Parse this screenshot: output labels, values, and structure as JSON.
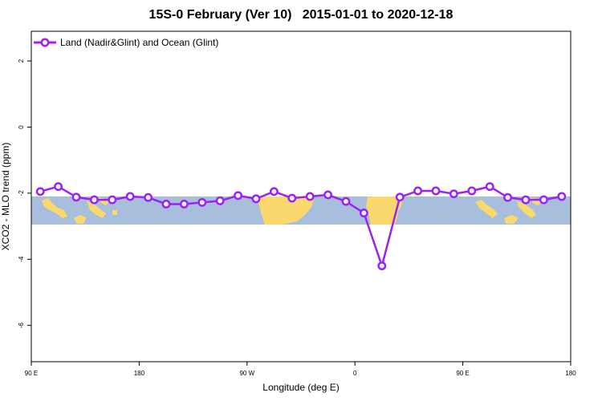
{
  "chart_data": {
    "type": "line",
    "title": "15S-0 February (Ver 10)   2015-01-01 to 2020-12-18",
    "xlabel": "Longitude (deg E)",
    "ylabel": "XCO2 - MLO trend (ppm)",
    "x_ticks": [
      {
        "pos": 90,
        "label": "90 E"
      },
      {
        "pos": 180,
        "label": "180"
      },
      {
        "pos": 270,
        "label": "90 W"
      },
      {
        "pos": 360,
        "label": "0"
      },
      {
        "pos": 450,
        "label": "90 E"
      },
      {
        "pos": 540,
        "label": "180"
      }
    ],
    "y_ticks": [
      2,
      0,
      -2,
      -4,
      -6
    ],
    "xlim": [
      90,
      540
    ],
    "ylim": [
      -7.1,
      2.9
    ],
    "legend_position": "top-left",
    "series": [
      {
        "name": "Land (Nadir&Glint) and Ocean (Glint)",
        "color": "#a020f0",
        "x": [
          97.5,
          112.5,
          127.5,
          142.5,
          157.5,
          172.5,
          187.5,
          202.5,
          217.5,
          232.5,
          247.5,
          262.5,
          277.5,
          292.5,
          307.5,
          322.5,
          337.5,
          352.5,
          367.5,
          382.5,
          397.5,
          412.5,
          427.5,
          442.5,
          457.5,
          472.5,
          487.5,
          502.5,
          517.5,
          532.5
        ],
        "y": [
          -1.95,
          -1.8,
          -2.12,
          -2.2,
          -2.2,
          -2.1,
          -2.13,
          -2.33,
          -2.33,
          -2.28,
          -2.23,
          -2.07,
          -2.17,
          -1.95,
          -2.15,
          -2.1,
          -2.05,
          -2.25,
          -2.6,
          -4.2,
          -2.12,
          -1.93,
          -1.93,
          -2.02,
          -1.93,
          -1.8,
          -2.13,
          -2.2,
          -2.2,
          -2.1
        ]
      }
    ]
  }
}
